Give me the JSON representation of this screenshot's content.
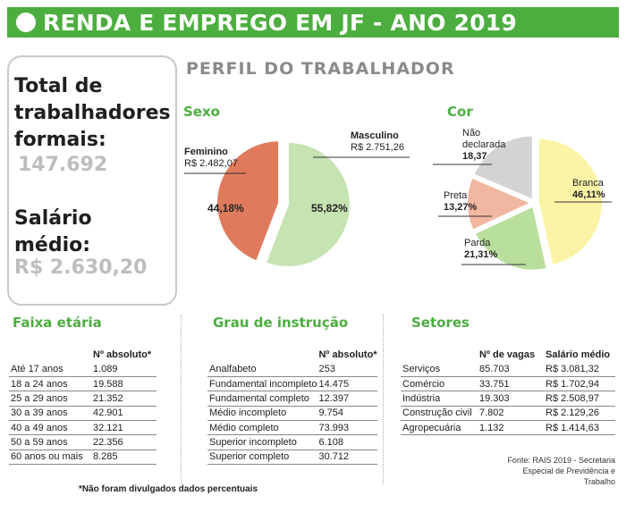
{
  "header": {
    "title": "RENDA E EMPREGO EM JF - ANO 2019"
  },
  "stats": {
    "total_label": "Total de trabalhadores formais:",
    "total_value": "147.692",
    "salary_label": "Salário médio:",
    "salary_value": "R$ 2.630,20"
  },
  "profile_title": "PERFIL DO TRABALHADOR",
  "colors": {
    "accent": "#4cae3f",
    "feminino": "#e07a5c",
    "masculino": "#c6e3b2",
    "branca": "#fbf3a6",
    "parda": "#b9df9c",
    "preta": "#f2b7a1",
    "nao_declarada": "#d3d3d3"
  },
  "sexo": {
    "title": "Sexo",
    "feminino_label": "Feminino",
    "feminino_salary": "R$ 2.482,07",
    "feminino_pct": "44,18%",
    "masculino_label": "Masculino",
    "masculino_salary": "R$ 2.751,26",
    "masculino_pct": "55,82%"
  },
  "cor": {
    "title": "Cor",
    "nao_declarada_label": "Não declarada",
    "nao_declarada_pct": "18,37",
    "preta_label": "Preta",
    "preta_pct": "13,27%",
    "parda_label": "Parda",
    "parda_pct": "21,31%",
    "branca_label": "Branca",
    "branca_pct": "46,11%"
  },
  "chart_data": [
    {
      "type": "pie",
      "title": "Sexo",
      "labels": [
        "Feminino",
        "Masculino"
      ],
      "values": [
        44.18,
        55.82
      ]
    },
    {
      "type": "pie",
      "title": "Cor",
      "labels": [
        "Branca",
        "Parda",
        "Preta",
        "Não declarada"
      ],
      "values": [
        46.11,
        21.31,
        13.27,
        18.37
      ]
    }
  ],
  "faixa": {
    "title": "Faixa etária",
    "header": "Nº absoluto*",
    "rows": [
      [
        "Até 17 anos",
        "1.089"
      ],
      [
        "18 a 24 anos",
        "19.588"
      ],
      [
        "25 a 29 anos",
        "21.352"
      ],
      [
        "30 a 39 anos",
        "42.901"
      ],
      [
        "40 a 49 anos",
        "32.121"
      ],
      [
        "50 a 59 anos",
        "22.356"
      ],
      [
        "60 anos ou mais",
        "8.285"
      ]
    ]
  },
  "grau": {
    "title": "Grau de instrução",
    "header": "Nº absoluto*",
    "rows": [
      [
        "Analfabeto",
        "253"
      ],
      [
        "Fundamental incompleto",
        "14.475"
      ],
      [
        "Fundamental completo",
        "12.397"
      ],
      [
        "Médio incompleto",
        "9.754"
      ],
      [
        "Médio completo",
        "73.993"
      ],
      [
        "Superior incompleto",
        "6.108"
      ],
      [
        "Superior completo",
        "30.712"
      ]
    ]
  },
  "setores": {
    "title": "Setores",
    "header_vagas": "Nº de vagas",
    "header_salario": "Salário médio",
    "rows": [
      [
        "Serviços",
        "85.703",
        "R$ 3.081,32"
      ],
      [
        "Comércio",
        "33.751",
        "R$ 1.702,94"
      ],
      [
        "Indústria",
        "19.303",
        "R$ 2.508,97"
      ],
      [
        "Construção civil",
        "7.802",
        "R$ 2.129,26"
      ],
      [
        "Agropecuária",
        "1.132",
        "R$ 1.414,63"
      ]
    ]
  },
  "footnote": "*Não foram divulgados dados percentuais",
  "source": [
    "Fonte: RAIS 2019 - Secretaria",
    "Especial de Previdência e",
    "Trabalho"
  ]
}
